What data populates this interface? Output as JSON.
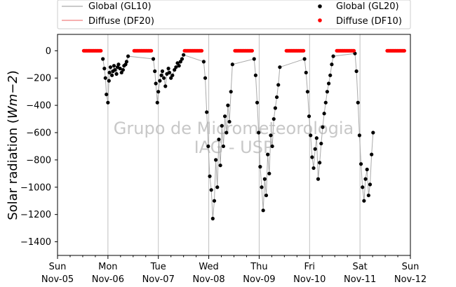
{
  "chart_data": {
    "type": "scatter",
    "ylabel_prefix": "Solar radiation (",
    "ylabel_unit": "Wm−2",
    "ylabel_suffix": ")",
    "ylim": [
      -1500,
      120
    ],
    "xlim": [
      0,
      7
    ],
    "yticks": [
      0,
      -200,
      -400,
      -600,
      -800,
      -1000,
      -1200,
      -1400
    ],
    "grid": "vertical-only",
    "x_ticks": [
      {
        "day": "Sun",
        "date": "Nov-05"
      },
      {
        "day": "Mon",
        "date": "Nov-06"
      },
      {
        "day": "Tue",
        "date": "Nov-07"
      },
      {
        "day": "Wed",
        "date": "Nov-08"
      },
      {
        "day": "Thu",
        "date": "Nov-09"
      },
      {
        "day": "Fri",
        "date": "Nov-10"
      },
      {
        "day": "Sat",
        "date": "Nov-11"
      },
      {
        "day": "Sun",
        "date": "Nov-12"
      }
    ],
    "legend_placement": "top, above plot",
    "legend": [
      {
        "label": "Global (GL10)",
        "marker": "line",
        "color": "#aaaaaa"
      },
      {
        "label": "Global (GL20)",
        "marker": "dot",
        "color": "#000000"
      },
      {
        "label": "Diffuse (DF20)",
        "marker": "line",
        "color": "#f08080"
      },
      {
        "label": "Diffuse (DF10)",
        "marker": "dot",
        "color": "#ff0000"
      }
    ],
    "watermark": [
      "Grupo de Micrometeorologia",
      "IAG - USP"
    ],
    "series": [
      {
        "name": "Global (GL20)",
        "color": "#000000",
        "style": "dots",
        "x": [
          0.9,
          0.93,
          0.95,
          0.97,
          1.0,
          1.02,
          1.03,
          1.05,
          1.08,
          1.1,
          1.12,
          1.14,
          1.17,
          1.19,
          1.21,
          1.24,
          1.27,
          1.3,
          1.32,
          1.35,
          1.37,
          1.4,
          1.9,
          1.93,
          1.95,
          1.98,
          2.0,
          2.03,
          2.06,
          2.08,
          2.11,
          2.14,
          2.17,
          2.2,
          2.22,
          2.25,
          2.28,
          2.32,
          2.35,
          2.38,
          2.41,
          2.44,
          2.47,
          2.5,
          2.9,
          2.93,
          2.96,
          2.99,
          3.02,
          3.05,
          3.08,
          3.11,
          3.14,
          3.17,
          3.2,
          3.23,
          3.26,
          3.29,
          3.32,
          3.35,
          3.38,
          3.41,
          3.44,
          3.47,
          3.9,
          3.93,
          3.96,
          3.99,
          4.02,
          4.05,
          4.08,
          4.11,
          4.14,
          4.17,
          4.2,
          4.23,
          4.26,
          4.29,
          4.32,
          4.35,
          4.38,
          4.41,
          4.9,
          4.93,
          4.96,
          4.99,
          5.02,
          5.05,
          5.08,
          5.11,
          5.14,
          5.17,
          5.2,
          5.23,
          5.26,
          5.29,
          5.32,
          5.35,
          5.38,
          5.41,
          5.44,
          5.47,
          5.9,
          5.93,
          5.96,
          5.99,
          6.02,
          6.05,
          6.08,
          6.11,
          6.14,
          6.17,
          6.2,
          6.23,
          6.26
        ],
        "y": [
          -60,
          -130,
          -200,
          -320,
          -380,
          -220,
          -160,
          -120,
          -180,
          -150,
          -110,
          -140,
          -170,
          -120,
          -100,
          -130,
          -160,
          -140,
          -110,
          -100,
          -80,
          -40,
          -60,
          -150,
          -240,
          -380,
          -300,
          -220,
          -180,
          -150,
          -200,
          -260,
          -170,
          -130,
          -160,
          -200,
          -180,
          -140,
          -120,
          -90,
          -110,
          -80,
          -60,
          -30,
          -80,
          -200,
          -450,
          -700,
          -920,
          -1020,
          -1230,
          -1100,
          -800,
          -1000,
          -650,
          -840,
          -550,
          -700,
          -480,
          -600,
          -400,
          -520,
          -300,
          -100,
          -60,
          -180,
          -380,
          -600,
          -850,
          -1000,
          -1170,
          -940,
          -1060,
          -760,
          -900,
          -620,
          -700,
          -500,
          -420,
          -340,
          -250,
          -120,
          -60,
          -160,
          -300,
          -480,
          -620,
          -780,
          -860,
          -720,
          -640,
          -940,
          -820,
          -680,
          -560,
          -460,
          -380,
          -300,
          -240,
          -180,
          -100,
          -40,
          -20,
          -150,
          -380,
          -620,
          -830,
          -1000,
          -1100,
          -940,
          -870,
          -1060,
          -980,
          -760,
          -600
        ],
        "extra_note": "series sampled from plot"
      }
    ]
  }
}
